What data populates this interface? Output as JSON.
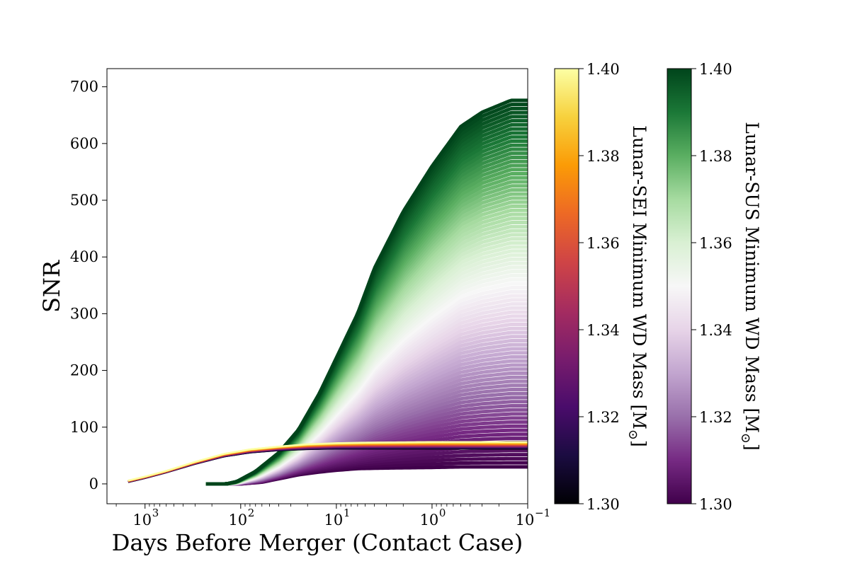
{
  "chart_data": {
    "type": "area",
    "xlabel": "Days Before Merger (Contact Case)",
    "ylabel": "SNR",
    "xscale": "log",
    "x_reversed": true,
    "xlim": [
      2500,
      0.1
    ],
    "ylim": [
      -35,
      732
    ],
    "x_ticks": [
      {
        "value": 1000,
        "base": "10",
        "exp": "3"
      },
      {
        "value": 100,
        "base": "10",
        "exp": "2"
      },
      {
        "value": 10,
        "base": "10",
        "exp": "1"
      },
      {
        "value": 1,
        "base": "10",
        "exp": "0"
      },
      {
        "value": 0.1,
        "base": "10",
        "exp": "−1"
      }
    ],
    "y_ticks": [
      {
        "value": 0,
        "label": "0"
      },
      {
        "value": 100,
        "label": "100"
      },
      {
        "value": 200,
        "label": "200"
      },
      {
        "value": 300,
        "label": "300"
      },
      {
        "value": 400,
        "label": "400"
      },
      {
        "value": 500,
        "label": "500"
      },
      {
        "value": 600,
        "label": "600"
      },
      {
        "value": 700,
        "label": "700"
      }
    ],
    "grid": false,
    "series": [
      {
        "label": "Lunar-SUS",
        "colormap": "PRGn",
        "min_mass": 1.3,
        "max_mass": 1.4,
        "curve_min_mass": {
          "x": [
            230,
            150,
            100,
            60,
            40,
            25,
            15,
            10,
            6,
            3,
            1,
            0.5,
            0.2,
            0.1
          ],
          "y": [
            0,
            0,
            0,
            3,
            9,
            16,
            21,
            24,
            27,
            28,
            29,
            30,
            30,
            30
          ]
        },
        "curve_max_mass": {
          "x": [
            230,
            140,
            110,
            70,
            40,
            25,
            15,
            10,
            6,
            4,
            2,
            1,
            0.5,
            0.3,
            0.15,
            0.1
          ],
          "y": [
            0,
            0,
            4,
            22,
            55,
            95,
            160,
            222,
            300,
            380,
            480,
            560,
            630,
            655,
            676,
            676
          ]
        }
      },
      {
        "label": "Lunar-SEI",
        "colormap": "inferno",
        "min_mass": 1.3,
        "max_mass": 1.4,
        "curve_min_mass": {
          "x": [
            1500,
            1000,
            600,
            300,
            150,
            80,
            40,
            20,
            10,
            5,
            1,
            0.1
          ],
          "y": [
            3,
            10,
            20,
            35,
            48,
            55,
            59,
            61,
            62,
            62,
            62,
            62
          ]
        },
        "curve_max_mass": {
          "x": [
            1500,
            1000,
            600,
            300,
            150,
            80,
            40,
            20,
            10,
            5,
            1,
            0.1
          ],
          "y": [
            6,
            13,
            23,
            39,
            53,
            61,
            66,
            70,
            72,
            73,
            74,
            74
          ]
        }
      }
    ],
    "colorbars": [
      {
        "label": "Lunar-SEI Minimum WD Mass [M",
        "label_suffix": "]",
        "label_symbol": "⊙",
        "colormap": "inferno",
        "stops": [
          "#000004",
          "#1b0c41",
          "#4a0c6b",
          "#781c6d",
          "#a52c60",
          "#cf4446",
          "#ed6925",
          "#fb9b06",
          "#f7d13d",
          "#fcffa4"
        ],
        "ticks": [
          "1.30",
          "1.32",
          "1.34",
          "1.36",
          "1.38",
          "1.40"
        ]
      },
      {
        "label": "Lunar-SUS Minimum WD Mass [M",
        "label_suffix": "]",
        "label_symbol": "⊙",
        "colormap": "PRGn",
        "stops": [
          "#40004b",
          "#762a83",
          "#9970ab",
          "#c2a5cf",
          "#e7d4e8",
          "#f7f7f7",
          "#d9f0d3",
          "#a6dba0",
          "#5aae61",
          "#1b7837",
          "#00441b"
        ],
        "ticks": [
          "1.30",
          "1.32",
          "1.34",
          "1.36",
          "1.38",
          "1.40"
        ]
      }
    ]
  }
}
